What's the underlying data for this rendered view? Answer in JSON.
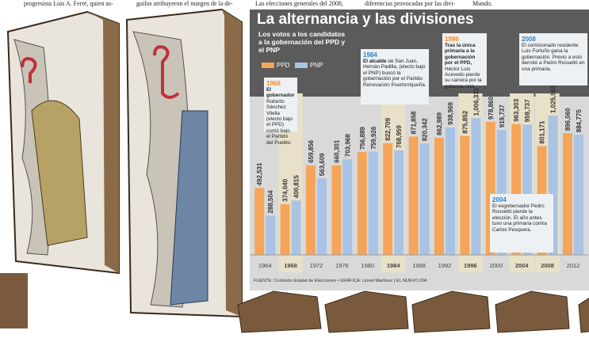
{
  "header_text": [
    "progresista Luis A. Ferré, quien as-",
    "guilos atribuyeron el margen de la de-",
    "Las elecciones generales del 2008,",
    "diferencias provocadas por las divi-",
    "Mundo."
  ],
  "chart_data": {
    "type": "bar",
    "title": "La alternancia y las divisiones",
    "subtitle": "Los votos a los candidatos a la gobernación del PPD y el PNP",
    "categories": [
      "1964",
      "1968",
      "1972",
      "1976",
      "1980",
      "1984",
      "1988",
      "1992",
      "1996",
      "2000",
      "2004",
      "2008",
      "2012"
    ],
    "series": [
      {
        "name": "PPD",
        "color": "#f5a55a",
        "values": [
          492531,
          374040,
          659856,
          660301,
          756889,
          822709,
          871858,
          862989,
          875852,
          978860,
          963303,
          801171,
          896060
        ],
        "value_labels": [
          "492,531",
          "374,040",
          "659,856",
          "660,301",
          "756,889",
          "822,709",
          "871,858",
          "862,989",
          "875,852",
          "978,860",
          "963,303",
          "801,171",
          "896,060"
        ]
      },
      {
        "name": "PNP",
        "color": "#a9c3e4",
        "values": [
          288504,
          400815,
          563609,
          703968,
          759926,
          768959,
          820342,
          938969,
          1006331,
          919737,
          959737,
          1025965,
          884775
        ],
        "value_labels": [
          "288,504",
          "400,815",
          "563,609",
          "703,968",
          "759,926",
          "768,959",
          "820,342",
          "938,969",
          "1,006,331",
          "919,737",
          "959,737",
          "1,025,965",
          "884,775"
        ]
      }
    ],
    "annotations": [
      {
        "year": "1968",
        "color": "#f08a2a",
        "lead": "El gobernador",
        "text": "Roberto Sánchez Vilella (electo bajo el PPD) corrió bajo el Partido del Pueblo."
      },
      {
        "year": "1984",
        "color": "#2f7fc0",
        "lead": "El alcalde",
        "text": "de San Juan, Hernán Padilla, (electo bajo el PNP) buscó la gobernación por el Partido Renovación Puertorriqueña."
      },
      {
        "year": "1996",
        "color": "#f08a2a",
        "lead": "Tras la única primaria a la gobernación por el PPD,",
        "text": "Héctor Luis Acevedo pierde su carrera por la goberna-ción."
      },
      {
        "year": "2004",
        "color": "#2f7fc0",
        "text": "El exgobernador Pedro Rosselló pierde la elección. El año antes tuvo una primaria contra Carlos Pesquera."
      },
      {
        "year": "2008",
        "color": "#2f7fc0",
        "text": "El comisionado residente Luis Fortuño gana la gobernación. Previo a esto derrotó a Pedro Rosselló en una primaria."
      }
    ],
    "source": "FUENTE: Comisión Estatal de Elecciones • GRÁFICA: Lionel Martínez | EL NUEVO DÍA"
  }
}
